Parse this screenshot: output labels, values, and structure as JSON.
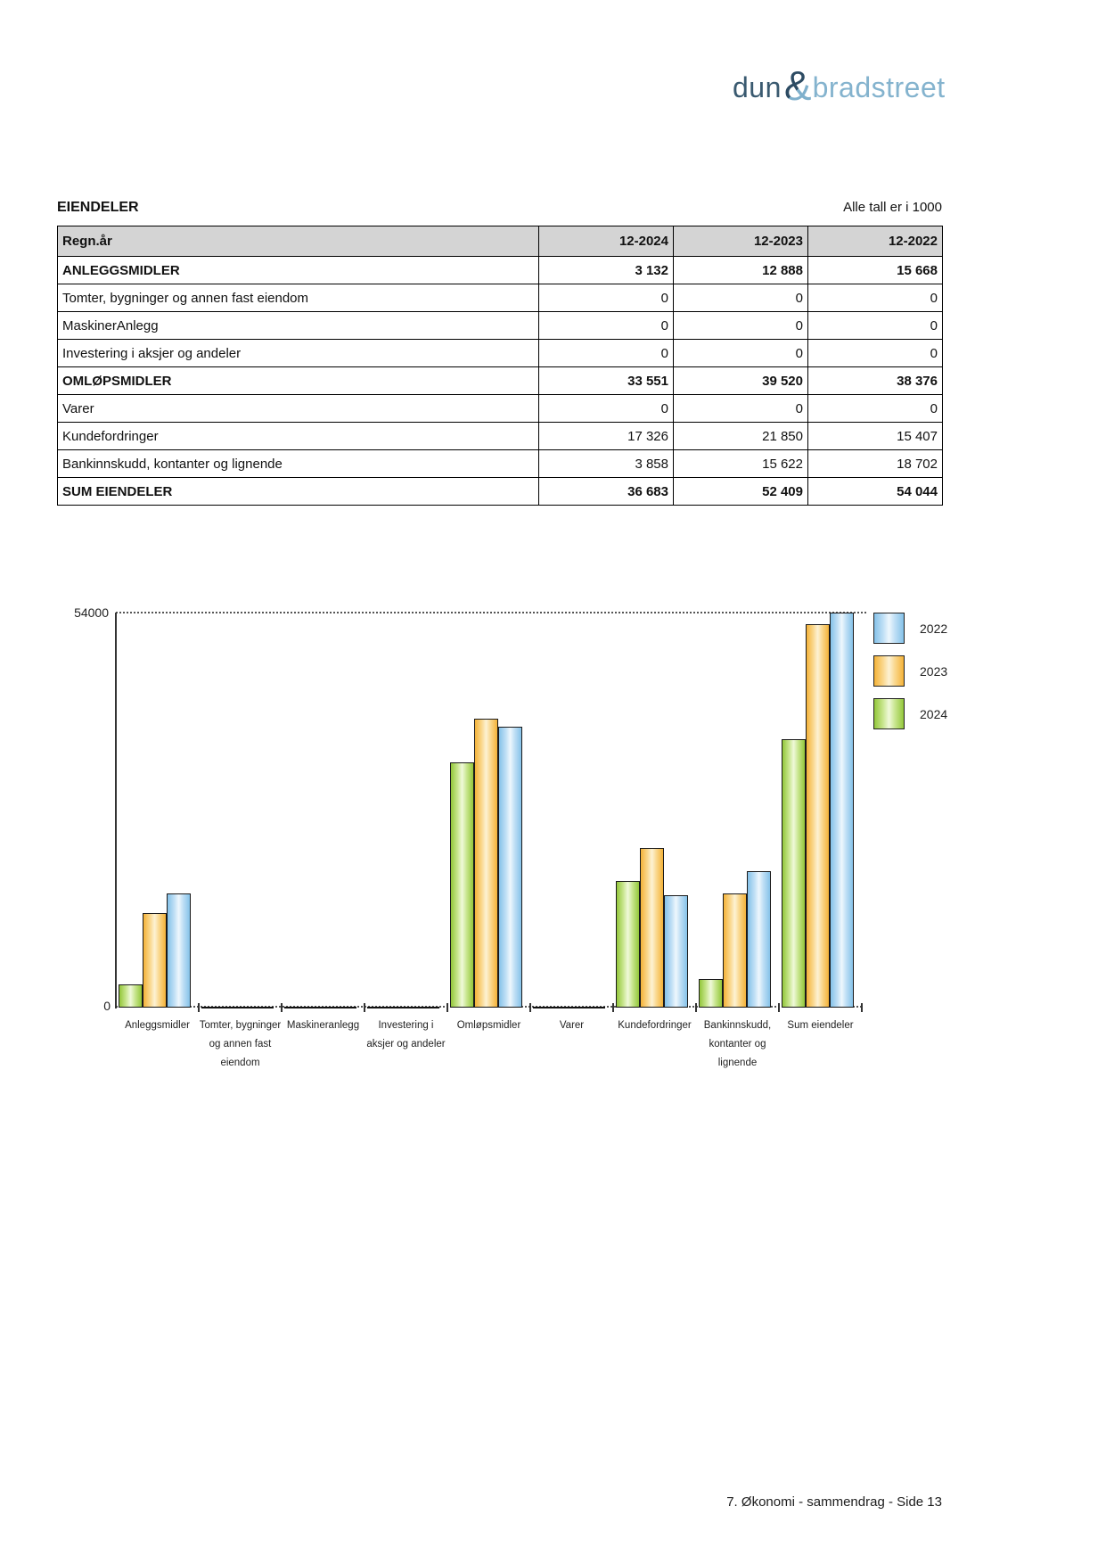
{
  "logo": {
    "part1": "dun",
    "amp": "&",
    "part2": "bradstreet",
    "color_dark": "#2d4b63",
    "color_light": "#84b3ce"
  },
  "header": {
    "title": "EIENDELER",
    "note": "Alle tall er i 1000"
  },
  "table": {
    "header": {
      "label": "Regn.år",
      "cols": [
        "12-2024",
        "12-2023",
        "12-2022"
      ]
    },
    "rows": [
      {
        "label": "ANLEGGSMIDLER",
        "values": [
          "3 132",
          "12 888",
          "15 668"
        ],
        "bold": true
      },
      {
        "label": "Tomter, bygninger og annen fast eiendom",
        "values": [
          "0",
          "0",
          "0"
        ],
        "bold": false
      },
      {
        "label": "MaskinerAnlegg",
        "values": [
          "0",
          "0",
          "0"
        ],
        "bold": false
      },
      {
        "label": "Investering i aksjer og andeler",
        "values": [
          "0",
          "0",
          "0"
        ],
        "bold": false
      },
      {
        "label": "OMLØPSMIDLER",
        "values": [
          "33 551",
          "39 520",
          "38 376"
        ],
        "bold": true
      },
      {
        "label": "Varer",
        "values": [
          "0",
          "0",
          "0"
        ],
        "bold": false
      },
      {
        "label": "Kundefordringer",
        "values": [
          "17 326",
          "21 850",
          "15 407"
        ],
        "bold": false
      },
      {
        "label": "Bankinnskudd, kontanter og lignende",
        "values": [
          "3 858",
          "15 622",
          "18 702"
        ],
        "bold": false
      },
      {
        "label": "SUM EIENDELER",
        "values": [
          "36 683",
          "52 409",
          "54 044"
        ],
        "bold": true
      }
    ]
  },
  "chart_data": {
    "type": "bar",
    "title": "",
    "categories": [
      "Anleggsmidler",
      "Tomter, bygninger og annen fast eiendom",
      "Maskineranlegg",
      "Investering i aksjer og andeler",
      "Omløpsmidler",
      "Varer",
      "Kundefordringer",
      "Bankinnskudd, kontanter og lignende",
      "Sum eiendeler"
    ],
    "series": [
      {
        "name": "2024",
        "color": "#93c73a",
        "values": [
          3132,
          0,
          0,
          0,
          33551,
          0,
          17326,
          3858,
          36683
        ]
      },
      {
        "name": "2023",
        "color": "#f4b238",
        "values": [
          12888,
          0,
          0,
          0,
          39520,
          0,
          21850,
          15622,
          52409
        ]
      },
      {
        "name": "2022",
        "color": "#85c2e9",
        "values": [
          15668,
          0,
          0,
          0,
          38376,
          0,
          15407,
          18702,
          54044
        ]
      }
    ],
    "legend": [
      {
        "label": "2022",
        "series": "2022"
      },
      {
        "label": "2023",
        "series": "2023"
      },
      {
        "label": "2024",
        "series": "2024"
      }
    ],
    "legend_position": "right-top",
    "ylim": [
      0,
      54000
    ],
    "yticks": [
      "54000",
      "0"
    ],
    "grid": "dotted line at y max only",
    "xlabel": "",
    "ylabel": ""
  },
  "footer": {
    "text": "7. Økonomi - sammendrag - Side 13"
  }
}
